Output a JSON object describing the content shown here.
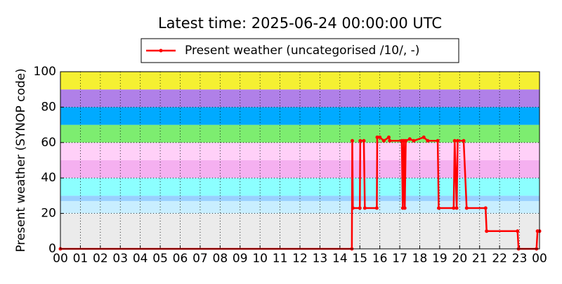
{
  "chart_data": {
    "type": "line",
    "title": "Latest time: 2025-06-24 00:00:00 UTC",
    "y_label": "Present weather (SYNOP code)",
    "legend": "upper center",
    "grid": true,
    "xlim": [
      0,
      24
    ],
    "ylim": [
      0,
      100
    ],
    "yticks": [
      0,
      20,
      40,
      60,
      80,
      100
    ],
    "xticks": [
      {
        "value": 0,
        "label": "00"
      },
      {
        "value": 1,
        "label": "01"
      },
      {
        "value": 2,
        "label": "02"
      },
      {
        "value": 3,
        "label": "03"
      },
      {
        "value": 4,
        "label": "04"
      },
      {
        "value": 5,
        "label": "05"
      },
      {
        "value": 6,
        "label": "06"
      },
      {
        "value": 7,
        "label": "07"
      },
      {
        "value": 8,
        "label": "08"
      },
      {
        "value": 9,
        "label": "09"
      },
      {
        "value": 10,
        "label": "10"
      },
      {
        "value": 11,
        "label": "11"
      },
      {
        "value": 12,
        "label": "12"
      },
      {
        "value": 13,
        "label": "13"
      },
      {
        "value": 14,
        "label": "14"
      },
      {
        "value": 15,
        "label": "15"
      },
      {
        "value": 16,
        "label": "16"
      },
      {
        "value": 17,
        "label": "17"
      },
      {
        "value": 18,
        "label": "18"
      },
      {
        "value": 19,
        "label": "19"
      },
      {
        "value": 20,
        "label": "20"
      },
      {
        "value": 21,
        "label": "21"
      },
      {
        "value": 22,
        "label": "22"
      },
      {
        "value": 23,
        "label": "23"
      },
      {
        "value": 24,
        "label": "00"
      }
    ],
    "bands": [
      {
        "from": 0,
        "to": 20,
        "color": "#ebebeb"
      },
      {
        "from": 20,
        "to": 27,
        "color": "#c8eeff"
      },
      {
        "from": 27,
        "to": 30,
        "color": "#99d0ff"
      },
      {
        "from": 30,
        "to": 40,
        "color": "#8cffff"
      },
      {
        "from": 40,
        "to": 50,
        "color": "#f5b0f0"
      },
      {
        "from": 50,
        "to": 60,
        "color": "#ffd0f8"
      },
      {
        "from": 60,
        "to": 70,
        "color": "#7ded70"
      },
      {
        "from": 70,
        "to": 80,
        "color": "#00aaff"
      },
      {
        "from": 80,
        "to": 90,
        "color": "#b080e8"
      },
      {
        "from": 90,
        "to": 100,
        "color": "#f5f032"
      }
    ],
    "x": [
      0,
      14.6,
      14.62,
      14.65,
      15.0,
      15.02,
      15.2,
      15.25,
      15.85,
      15.87,
      16.0,
      16.2,
      16.45,
      16.5,
      17.1,
      17.15,
      17.2,
      17.25,
      17.3,
      17.5,
      17.7,
      18.2,
      18.4,
      18.9,
      18.95,
      19.7,
      19.75,
      19.85,
      19.9,
      20.2,
      20.35,
      21.3,
      21.35,
      22.9,
      22.95,
      23.85,
      23.9,
      24
    ],
    "series": [
      {
        "name": "Present weather (uncategorised /10/, -)",
        "color": "#ff0000",
        "values": [
          0,
          0,
          61,
          23,
          23,
          61,
          61,
          23,
          23,
          63,
          63,
          61,
          63,
          61,
          61,
          23,
          61,
          23,
          61,
          62,
          61,
          63,
          61,
          61,
          23,
          23,
          61,
          23,
          61,
          61,
          23,
          23,
          10,
          10,
          0,
          0,
          10,
          10
        ]
      }
    ]
  }
}
